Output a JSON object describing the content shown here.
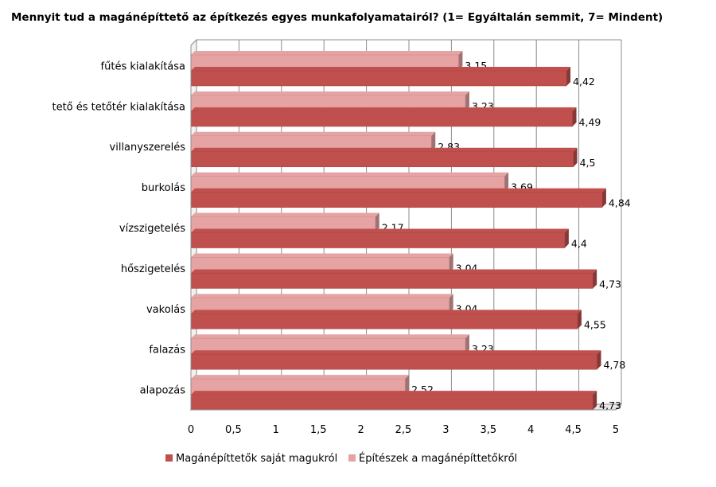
{
  "chart_data": {
    "type": "bar",
    "orientation": "horizontal",
    "style": "3d-clustered",
    "title": "Mennyit tud a magánépíttető az építkezés egyes munkafolyamatairól? (1= Egyáltalán semmit, 7= Mindent)",
    "categories": [
      "fűtés kialakítása",
      "tető és tetőtér kialakítása",
      "villanyszerelés",
      "burkolás",
      "vízszigetelés",
      "hőszigetelés",
      "vakolás",
      "falazás",
      "alapozás"
    ],
    "series": [
      {
        "name": "Magánépíttetők saját magukról",
        "color": "#c0504d",
        "values": [
          4.42,
          4.49,
          4.5,
          4.84,
          4.4,
          4.73,
          4.55,
          4.78,
          4.73
        ],
        "labels": [
          "4,42",
          "4,49",
          "4,5",
          "4,84",
          "4,4",
          "4,73",
          "4,55",
          "4,78",
          "4,73"
        ]
      },
      {
        "name": "Építészek a magánépíttetőkről",
        "color": "#e6a3a3",
        "values": [
          3.15,
          3.23,
          2.83,
          3.69,
          2.17,
          3.04,
          3.04,
          3.23,
          2.52
        ],
        "labels": [
          "3,15",
          "3,23",
          "2,83",
          "3,69",
          "2,17",
          "3,04",
          "3,04",
          "3,23",
          "2,52"
        ]
      }
    ],
    "xlim": [
      0,
      5
    ],
    "xticks": [
      0,
      0.5,
      1,
      1.5,
      2,
      2.5,
      3,
      3.5,
      4,
      4.5,
      5
    ],
    "xtick_labels": [
      "0",
      "0,5",
      "1",
      "1,5",
      "2",
      "2,5",
      "3",
      "3,5",
      "4",
      "4,5",
      "5"
    ],
    "grid": true,
    "legend_position": "bottom"
  }
}
